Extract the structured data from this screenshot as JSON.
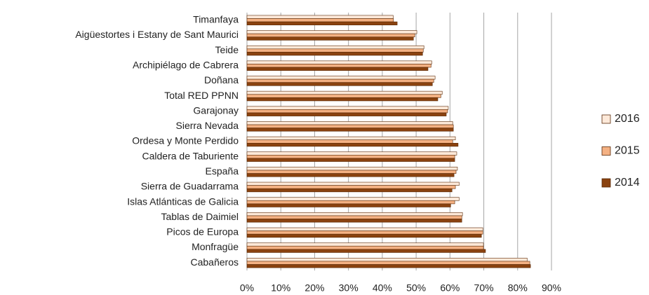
{
  "chart_data": {
    "type": "bar",
    "orientation": "horizontal",
    "categories": [
      "Timanfaya",
      "Aigüestortes i Estany de Sant Maurici",
      "Teide",
      "Archipiélago de Cabrera",
      "Doñana",
      "Total RED PPNN",
      "Garajonay",
      "Sierra Nevada",
      "Ordesa y Monte Perdido",
      "Caldera de Taburiente",
      "España",
      "Sierra de Guadarrama",
      "Islas Atlánticas de Galicia",
      "Tablas de Daimiel",
      "Picos de Europa",
      "Monfragüe",
      "Cabañeros"
    ],
    "series": [
      {
        "name": "2016",
        "color": "#fde9d9",
        "values": [
          43.2,
          50.2,
          52.3,
          54.6,
          55.6,
          57.7,
          59.5,
          60.8,
          61.6,
          62.0,
          62.2,
          62.7,
          62.7,
          63.7,
          69.7,
          69.9,
          82.8
        ]
      },
      {
        "name": "2015",
        "color": "#f4b183",
        "values": [
          43.3,
          49.6,
          52.1,
          54.4,
          55.2,
          57.3,
          59.3,
          61.0,
          60.8,
          61.4,
          61.8,
          61.6,
          61.4,
          63.5,
          69.7,
          69.9,
          83.6
        ]
      },
      {
        "name": "2014",
        "color": "#8a420f",
        "values": [
          44.4,
          49.2,
          51.9,
          53.5,
          54.8,
          56.4,
          58.9,
          61.0,
          62.4,
          61.4,
          61.2,
          60.6,
          60.2,
          63.5,
          69.3,
          70.5,
          83.8
        ]
      }
    ],
    "xlim": [
      0,
      90
    ],
    "xticks": [
      {
        "value": 0,
        "label": "0%"
      },
      {
        "value": 10,
        "label": "10%"
      },
      {
        "value": 20,
        "label": "20%"
      },
      {
        "value": 30,
        "label": "30%"
      },
      {
        "value": 40,
        "label": "40%"
      },
      {
        "value": 50,
        "label": "50%"
      },
      {
        "value": 60,
        "label": "60%"
      },
      {
        "value": 70,
        "label": "70%"
      },
      {
        "value": 80,
        "label": "80%"
      },
      {
        "value": 90,
        "label": "90%"
      }
    ],
    "grid": true,
    "legend": "right"
  }
}
